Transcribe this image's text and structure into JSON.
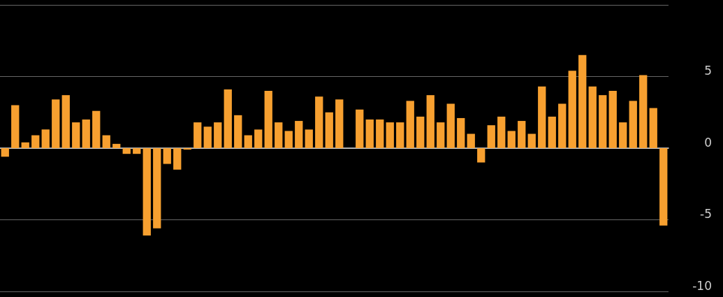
{
  "chart_data": {
    "type": "bar",
    "color": "#f7a030",
    "categories": [
      null,
      null,
      null,
      null,
      null,
      null,
      null,
      null,
      null,
      null,
      null,
      null,
      null,
      null,
      null,
      null,
      null,
      null,
      null,
      null,
      null,
      null,
      null,
      null,
      null,
      null,
      null,
      null,
      null,
      null,
      null,
      null,
      null,
      null,
      null,
      null,
      null,
      null,
      null,
      null,
      null,
      null,
      null,
      null,
      null,
      null,
      null,
      null,
      null,
      null,
      null,
      null,
      null,
      null,
      null,
      null,
      null,
      null,
      null,
      null,
      null,
      null,
      null,
      null,
      null,
      null
    ],
    "values": [
      -0.6,
      3.0,
      0.4,
      0.9,
      1.3,
      3.4,
      3.7,
      1.8,
      2.0,
      2.6,
      0.9,
      0.3,
      -0.4,
      -0.4,
      -6.1,
      -5.6,
      -1.1,
      -1.5,
      -0.1,
      1.8,
      1.5,
      1.8,
      4.1,
      2.3,
      0.9,
      1.3,
      4.0,
      1.8,
      1.2,
      1.9,
      1.3,
      3.6,
      2.5,
      3.4,
      null,
      2.7,
      2.0,
      2.0,
      1.8,
      1.8,
      3.3,
      2.2,
      3.7,
      1.8,
      3.1,
      2.1,
      1.0,
      -1.0,
      1.6,
      2.2,
      1.2,
      1.9,
      1.0,
      4.3,
      2.2,
      3.1,
      5.4,
      6.5,
      4.3,
      3.7,
      4.0,
      1.8,
      3.3,
      5.1,
      2.8,
      -5.4
    ],
    "ylim": [
      -10,
      10
    ],
    "yticks": [
      -10,
      -5,
      0,
      5,
      {
        "value": 10,
        "label": null
      }
    ],
    "grid": "y"
  }
}
